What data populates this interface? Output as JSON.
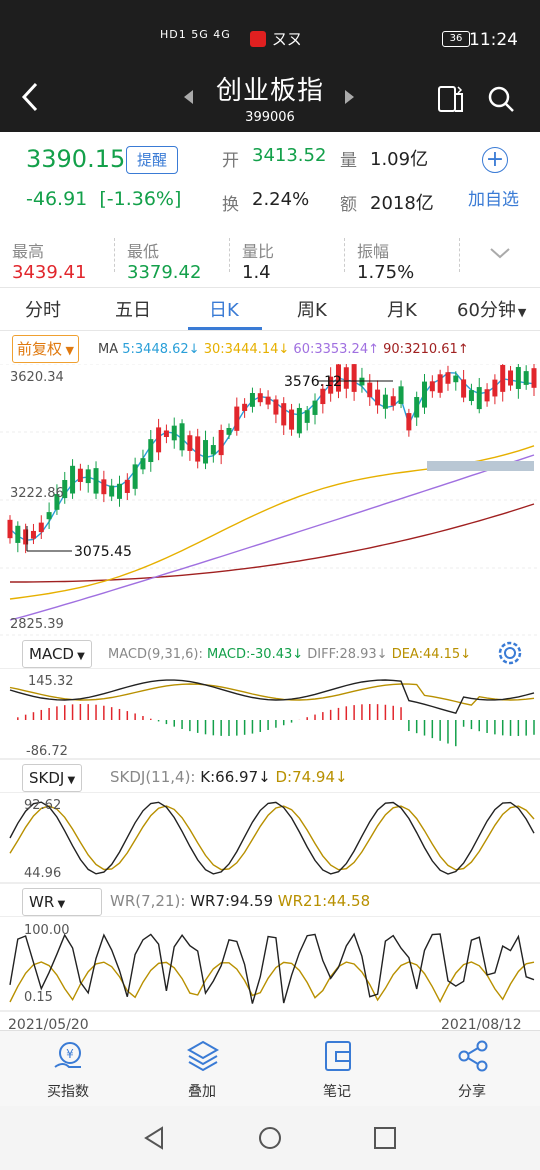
{
  "status": {
    "carrier_left": "HD1 5G 4G",
    "badge": "36",
    "time": "11:24",
    "wifi_text": "ㄡㄡ"
  },
  "header": {
    "title": "创业板指",
    "code": "399006"
  },
  "quote": {
    "price": "3390.15",
    "remind_label": "提醒",
    "change": "-46.91",
    "change_pct": "[-1.36%]",
    "open_label": "开",
    "open": "3413.52",
    "vol_label": "量",
    "vol": "1.09亿",
    "turnover_label": "换",
    "turnover": "2.24%",
    "amount_label": "额",
    "amount": "2018亿",
    "add_label": "加自选"
  },
  "stats": [
    {
      "label": "最高",
      "value": "3439.41",
      "color": "#e1262c"
    },
    {
      "label": "最低",
      "value": "3379.42",
      "color": "#13a04a"
    },
    {
      "label": "量比",
      "value": "1.4",
      "color": "#222222"
    },
    {
      "label": "振幅",
      "value": "1.75%",
      "color": "#222222"
    }
  ],
  "tabs": [
    "分时",
    "五日",
    "日K",
    "周K",
    "月K",
    "60分钟"
  ],
  "active_tab": "日K",
  "main_chart": {
    "adjust_label": "前复权",
    "ma_prefix": "MA",
    "ma5": "5:3448.62↓",
    "ma30": "30:3444.14↓",
    "ma60": "60:3353.24↑",
    "ma90": "90:3210.61↑",
    "y_top": "3620.34",
    "y_mid": "3222.86",
    "y_bot": "2825.39",
    "high_mark": "3576.12",
    "low_mark": "3075.45",
    "colors": {
      "ma5": "#2a9fd8",
      "ma30": "#e6b000",
      "ma60": "#a070e0",
      "ma90": "#a02020",
      "up": "#e1262c",
      "down": "#13a04a"
    }
  },
  "macd": {
    "name": "MACD",
    "params": "MACD(9,31,6):",
    "macd": "MACD:-30.43↓",
    "diff": "DIFF:28.93↓",
    "dea": "DEA:44.15↓",
    "y_top": "145.32",
    "y_bot": "-86.72"
  },
  "skdj": {
    "name": "SKDJ",
    "params": "SKDJ(11,4):",
    "k": "K:66.97↓",
    "d": "D:74.94↓",
    "y_top": "92.62",
    "y_bot": "44.96"
  },
  "wr": {
    "name": "WR",
    "params": "WR(7,21):",
    "wr7": "WR7:94.59",
    "wr21": "WR21:44.58",
    "y_top": "100.00",
    "y_bot": "0.15"
  },
  "dates": {
    "start": "2021/05/20",
    "end": "2021/08/12"
  },
  "bottom_bar": [
    {
      "label": "买指数",
      "icon": "yuan-hand-icon"
    },
    {
      "label": "叠加",
      "icon": "layers-icon"
    },
    {
      "label": "笔记",
      "icon": "note-icon"
    },
    {
      "label": "分享",
      "icon": "share-icon"
    }
  ]
}
